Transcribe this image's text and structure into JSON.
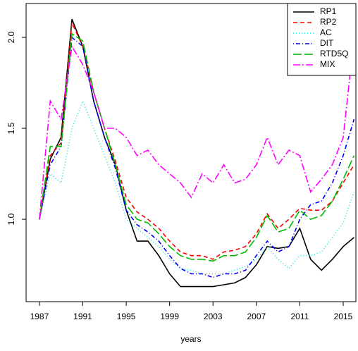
{
  "chart_data": {
    "type": "line",
    "xlabel": "years",
    "x": [
      1987,
      1988,
      1989,
      1990,
      1991,
      1992,
      1993,
      1994,
      1995,
      1996,
      1997,
      1998,
      1999,
      2000,
      2001,
      2002,
      2003,
      2004,
      2005,
      2006,
      2007,
      2008,
      2009,
      2010,
      2011,
      2012,
      2013,
      2014,
      2015,
      2016
    ],
    "xlim": [
      1985.77,
      2016.17
    ],
    "xticks": [
      1987,
      1991,
      1995,
      1999,
      2003,
      2007,
      2011,
      2015
    ],
    "ylim": [
      0.547,
      2.186
    ],
    "yticks": [
      {
        "value": 1,
        "label": "1.0"
      },
      {
        "value": 1.5,
        "label": "1.5"
      },
      {
        "value": 2,
        "label": "2.0"
      }
    ],
    "legend": "top-right",
    "series": [
      {
        "name": "RP1",
        "color": "#000000",
        "dash": "none",
        "values": [
          1.0,
          1.33,
          1.45,
          2.1,
          1.95,
          1.65,
          1.45,
          1.3,
          1.05,
          0.88,
          0.88,
          0.8,
          0.7,
          0.63,
          0.63,
          0.63,
          0.63,
          0.64,
          0.65,
          0.68,
          0.75,
          0.85,
          0.84,
          0.85,
          0.95,
          0.78,
          0.72,
          0.78,
          0.85,
          0.9
        ]
      },
      {
        "name": "RP2",
        "color": "#ff0000",
        "dash": "6 4",
        "values": [
          1.0,
          1.35,
          1.42,
          2.08,
          1.95,
          1.7,
          1.5,
          1.32,
          1.12,
          1.04,
          1.0,
          0.95,
          0.88,
          0.82,
          0.8,
          0.8,
          0.78,
          0.82,
          0.83,
          0.85,
          0.92,
          1.03,
          0.95,
          1.0,
          1.06,
          1.05,
          1.05,
          1.1,
          1.2,
          1.3
        ]
      },
      {
        "name": "AC",
        "color": "#22dddd",
        "dash": "1 3",
        "values": [
          1.0,
          1.25,
          1.2,
          1.5,
          1.65,
          1.5,
          1.35,
          1.2,
          1.0,
          0.95,
          0.9,
          0.85,
          0.78,
          0.73,
          0.72,
          0.7,
          0.7,
          0.7,
          0.72,
          0.74,
          0.78,
          0.85,
          0.78,
          0.73,
          0.8,
          0.8,
          0.82,
          0.9,
          0.98,
          1.15
        ]
      },
      {
        "name": "DIT",
        "color": "#0000ff",
        "dash": "1 3 6 3",
        "values": [
          1.0,
          1.3,
          1.4,
          2.0,
          1.95,
          1.65,
          1.45,
          1.28,
          1.05,
          0.97,
          0.93,
          0.88,
          0.8,
          0.73,
          0.7,
          0.7,
          0.68,
          0.7,
          0.7,
          0.72,
          0.8,
          0.88,
          0.82,
          0.85,
          1.0,
          1.08,
          1.1,
          1.2,
          1.35,
          1.55
        ]
      },
      {
        "name": "RTD5Q",
        "color": "#00bb00",
        "dash": "12 4",
        "values": [
          1.0,
          1.4,
          1.4,
          2.02,
          1.98,
          1.7,
          1.5,
          1.3,
          1.08,
          1.0,
          0.98,
          0.92,
          0.85,
          0.8,
          0.78,
          0.78,
          0.77,
          0.8,
          0.8,
          0.82,
          0.9,
          1.02,
          0.93,
          0.95,
          1.05,
          1.0,
          1.02,
          1.1,
          1.22,
          1.35
        ]
      },
      {
        "name": "MIX",
        "color": "#ff00ff",
        "dash": "10 3 2 3",
        "values": [
          1.0,
          1.65,
          1.55,
          1.95,
          1.85,
          1.7,
          1.5,
          1.5,
          1.45,
          1.35,
          1.38,
          1.3,
          1.25,
          1.2,
          1.12,
          1.25,
          1.2,
          1.3,
          1.2,
          1.22,
          1.3,
          1.45,
          1.3,
          1.38,
          1.35,
          1.15,
          1.22,
          1.3,
          1.45,
          2.0
        ]
      }
    ]
  }
}
